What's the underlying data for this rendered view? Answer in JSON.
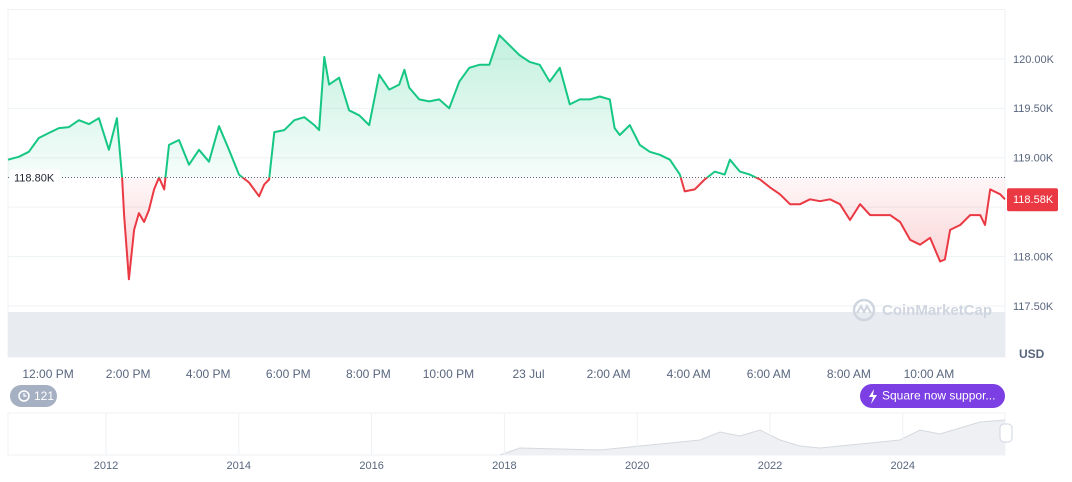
{
  "chart_data": {
    "type": "line",
    "x": [
      -13.0,
      -12.73,
      -12.48,
      -12.23,
      -11.98,
      -11.73,
      -11.48,
      -11.23,
      -10.98,
      -10.73,
      -10.48,
      -10.28,
      -10.15,
      -10.1,
      -9.98,
      -9.85,
      -9.73,
      -9.6,
      -9.48,
      -9.35,
      -9.23,
      -9.1,
      -8.98,
      -8.73,
      -8.48,
      -8.23,
      -7.98,
      -7.73,
      -7.48,
      -7.23,
      -6.98,
      -6.73,
      -6.6,
      -6.48,
      -6.35,
      -6.1,
      -5.85,
      -5.6,
      -5.35,
      -5.23,
      -5.1,
      -4.98,
      -4.73,
      -4.48,
      -4.23,
      -3.98,
      -3.73,
      -3.48,
      -3.23,
      -3.1,
      -2.98,
      -2.73,
      -2.48,
      -2.23,
      -1.98,
      -1.73,
      -1.48,
      -1.23,
      -0.98,
      -0.73,
      -0.48,
      -0.23,
      0.03,
      0.28,
      0.53,
      0.78,
      1.03,
      1.28,
      1.53,
      1.78,
      2.03,
      2.15,
      2.28,
      2.53,
      2.78,
      3.03,
      3.28,
      3.53,
      3.78,
      3.9,
      4.15,
      4.4,
      4.65,
      4.9,
      5.03,
      5.28,
      5.53,
      5.78,
      6.03,
      6.28,
      6.53,
      6.78,
      7.03,
      7.28,
      7.53,
      7.78,
      8.03,
      8.28,
      8.53,
      8.78,
      9.03,
      9.28,
      9.53,
      9.78,
      10.03,
      10.28,
      10.4,
      10.53,
      10.78,
      11.03,
      11.28,
      11.4,
      11.53,
      11.78,
      11.9
    ],
    "values": [
      118980,
      119010,
      119060,
      119200,
      119250,
      119300,
      119310,
      119380,
      119340,
      119400,
      119080,
      119400,
      118800,
      118420,
      117770,
      118270,
      118440,
      118350,
      118470,
      118680,
      118800,
      118680,
      119130,
      119180,
      118930,
      119080,
      118960,
      119320,
      119080,
      118830,
      118750,
      118610,
      118730,
      118780,
      119260,
      119280,
      119380,
      119410,
      119330,
      119280,
      120020,
      119740,
      119810,
      119480,
      119430,
      119330,
      119840,
      119690,
      119740,
      119890,
      119710,
      119590,
      119570,
      119590,
      119500,
      119770,
      119910,
      119940,
      119940,
      120240,
      120140,
      120040,
      119970,
      119940,
      119770,
      119910,
      119540,
      119590,
      119590,
      119620,
      119590,
      119300,
      119230,
      119330,
      119130,
      119060,
      119030,
      118980,
      118830,
      118660,
      118680,
      118780,
      118860,
      118830,
      118980,
      118860,
      118830,
      118780,
      118700,
      118630,
      118530,
      118530,
      118580,
      118560,
      118580,
      118530,
      118370,
      118530,
      118420,
      118420,
      118420,
      118350,
      118170,
      118120,
      118190,
      117950,
      117970,
      118270,
      118320,
      118420,
      118420,
      118320,
      118680,
      118630,
      118580
    ],
    "up_color": "#16c784",
    "down_color": "#ea3943",
    "xlim": [
      -13,
      11.9
    ],
    "xticks": [
      {
        "value": -12,
        "label": "12:00 PM"
      },
      {
        "value": -10,
        "label": "2:00 PM"
      },
      {
        "value": -8,
        "label": "4:00 PM"
      },
      {
        "value": -6,
        "label": "6:00 PM"
      },
      {
        "value": -4,
        "label": "8:00 PM"
      },
      {
        "value": -2,
        "label": "10:00 PM"
      },
      {
        "value": 0,
        "label": "23 Jul"
      },
      {
        "value": 2,
        "label": "2:00 AM"
      },
      {
        "value": 4,
        "label": "4:00 AM"
      },
      {
        "value": 6,
        "label": "6:00 AM"
      },
      {
        "value": 8,
        "label": "8:00 AM"
      },
      {
        "value": 10,
        "label": "10:00 AM"
      }
    ],
    "ylim": [
      117500,
      120500
    ],
    "yticks": [
      {
        "value": 117500,
        "label": "117.50K"
      },
      {
        "value": 118000,
        "label": "118.00K"
      },
      {
        "value": 118500,
        "label": "118.50K"
      },
      {
        "value": 119000,
        "label": "119.00K"
      },
      {
        "value": 119500,
        "label": "119.50K"
      },
      {
        "value": 120000,
        "label": "120.00K"
      }
    ],
    "reference": {
      "value": 118800,
      "label": "118.80K"
    },
    "last_price": {
      "value": 118580,
      "label": "118.58K"
    },
    "currency": "USD",
    "grid": true,
    "navigator_labels": [
      "2012",
      "2014",
      "2016",
      "2018",
      "2020",
      "2022",
      "2024"
    ]
  },
  "ui": {
    "watermark": "CoinMarketCap",
    "history_badge": "121",
    "notice": "Square now suppor..."
  }
}
